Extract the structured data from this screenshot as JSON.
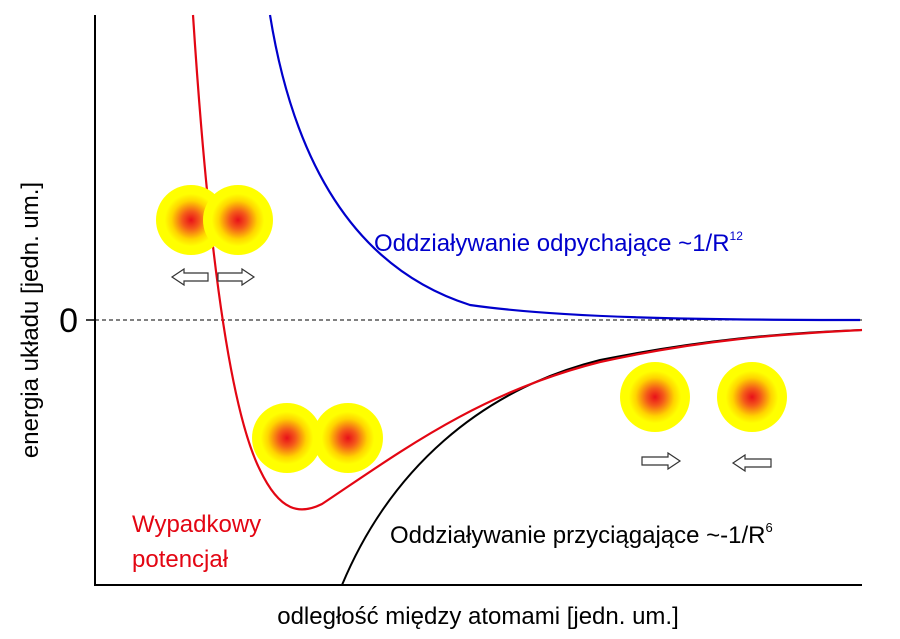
{
  "axes": {
    "zero_label": "0",
    "y_label": "energia układu [jedn. um.]",
    "x_label": "odległość między atomami [jedn. um.]"
  },
  "curves": {
    "repulsive": {
      "label": "Oddziaływanie odpychające ~1/R",
      "exponent": "12"
    },
    "attractive": {
      "label": "Oddziaływanie przyciągające ~-1/R",
      "exponent": "6"
    },
    "total": {
      "label_lines": [
        "Wypadkowy",
        "potencjał"
      ]
    }
  }
}
